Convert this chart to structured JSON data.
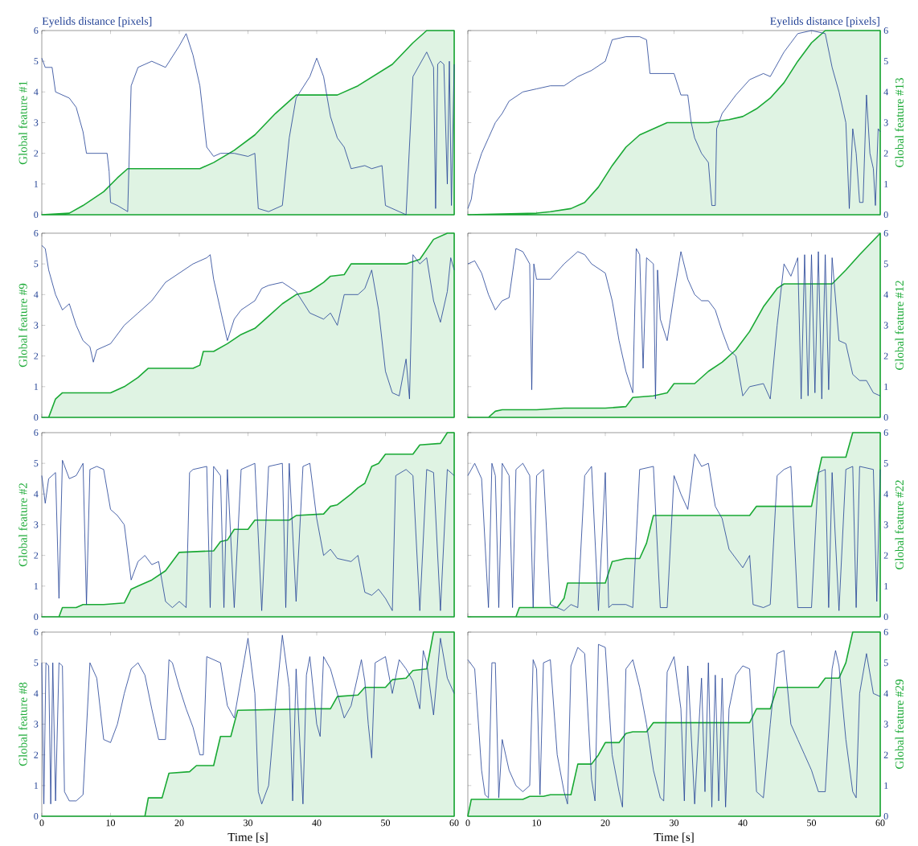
{
  "chart_data": [
    {
      "type": "line",
      "ylabel": "Global feature #1",
      "annotations": [
        "Eyelids distance [pixels]"
      ],
      "xlim": [
        0,
        60
      ],
      "xticks": [
        0,
        10,
        20,
        30,
        40,
        50,
        60
      ],
      "ylim": [
        0,
        6
      ],
      "yticks": [
        0,
        1,
        2,
        3,
        4,
        5,
        6
      ],
      "tick_labels": "y",
      "series": [
        {
          "type": "area",
          "color": "#19a934",
          "x": [
            0,
            4,
            6,
            9,
            11,
            12.5,
            23,
            25,
            28,
            31,
            34,
            37,
            43,
            46,
            51,
            54,
            56,
            60
          ],
          "values": [
            0,
            0.05,
            0.3,
            0.75,
            1.2,
            1.5,
            1.5,
            1.7,
            2.1,
            2.6,
            3.3,
            3.9,
            3.9,
            4.2,
            4.9,
            5.6,
            6,
            6
          ]
        },
        {
          "color": "#1f3f94",
          "x": [
            0,
            0.5,
            1.5,
            2,
            4,
            5,
            6,
            6.5,
            8,
            9.5,
            9.8,
            10,
            11,
            12.5,
            13,
            14,
            16,
            18,
            20,
            21,
            22,
            23,
            24,
            25,
            26,
            28,
            30,
            31,
            31.5,
            33,
            35,
            36,
            37,
            39,
            40,
            41,
            42,
            43,
            44,
            45,
            47,
            48,
            49.5,
            50,
            52,
            53,
            54,
            55,
            56,
            57,
            57.3,
            57.6,
            58,
            58.5,
            59,
            59.3,
            59.6,
            60
          ],
          "values": [
            5.1,
            4.8,
            4.8,
            4.0,
            3.8,
            3.5,
            2.7,
            2.0,
            2.0,
            2.0,
            1.4,
            0.4,
            0.3,
            0.1,
            4.2,
            4.8,
            5.0,
            4.8,
            5.5,
            5.9,
            5.2,
            4.2,
            2.2,
            1.9,
            2.0,
            2.0,
            1.9,
            2.0,
            0.2,
            0.1,
            0.3,
            2.5,
            3.8,
            4.5,
            5.1,
            4.5,
            3.2,
            2.5,
            2.2,
            1.5,
            1.6,
            1.5,
            1.6,
            0.3,
            0.1,
            0.0,
            4.5,
            4.9,
            5.3,
            4.8,
            0.2,
            4.9,
            5.0,
            4.9,
            1.0,
            5.0,
            0.3,
            4.9
          ]
        }
      ]
    },
    {
      "type": "line",
      "ylabel": "Global feature #13",
      "annotations": [
        "Eyelids distance [pixels]"
      ],
      "xlim": [
        0,
        60
      ],
      "xticks": [
        0,
        10,
        20,
        30,
        40,
        50,
        60
      ],
      "ylim": [
        0,
        6
      ],
      "yticks": [
        0,
        1,
        2,
        3,
        4,
        5,
        6
      ],
      "tick_labels": "y",
      "series": [
        {
          "type": "area",
          "color": "#19a934",
          "x": [
            0,
            10,
            12,
            15,
            17,
            19,
            21,
            23,
            25,
            27,
            29,
            35,
            38,
            40,
            42,
            44,
            46,
            48,
            50,
            52,
            60
          ],
          "values": [
            0,
            0.05,
            0.1,
            0.2,
            0.4,
            0.9,
            1.6,
            2.2,
            2.6,
            2.8,
            3.0,
            3.0,
            3.1,
            3.2,
            3.45,
            3.8,
            4.3,
            5.0,
            5.6,
            6.0,
            6.0
          ]
        },
        {
          "color": "#1f3f94",
          "x": [
            0,
            0.5,
            1,
            2,
            3,
            4,
            5,
            6,
            8,
            10,
            12,
            14,
            16,
            17,
            18,
            20,
            21,
            23,
            25,
            26,
            26.5,
            28,
            30,
            31,
            32,
            32.5,
            33,
            34,
            35,
            35.5,
            36,
            36.2,
            37,
            39,
            41,
            43,
            44,
            46,
            47,
            48,
            50,
            52,
            53,
            54,
            55,
            55.5,
            56,
            56.5,
            57,
            57.5,
            58,
            58.5,
            59,
            59.3,
            59.7,
            60
          ],
          "values": [
            0.2,
            0.5,
            1.3,
            2.0,
            2.5,
            3.0,
            3.3,
            3.7,
            4.0,
            4.1,
            4.2,
            4.2,
            4.5,
            4.6,
            4.7,
            5.0,
            5.7,
            5.8,
            5.8,
            5.7,
            4.6,
            4.6,
            4.6,
            3.9,
            3.9,
            3.0,
            2.5,
            2.0,
            1.7,
            0.3,
            0.3,
            2.8,
            3.3,
            3.9,
            4.4,
            4.6,
            4.5,
            5.3,
            5.6,
            5.9,
            6.0,
            5.9,
            4.8,
            4.0,
            3.0,
            0.2,
            2.8,
            2.0,
            0.4,
            0.4,
            3.9,
            2.0,
            1.5,
            0.3,
            2.8,
            2.7
          ]
        }
      ]
    },
    {
      "type": "line",
      "ylabel": "Global feature #9",
      "xlim": [
        0,
        60
      ],
      "xticks": [
        0,
        10,
        20,
        30,
        40,
        50,
        60
      ],
      "ylim": [
        0,
        6
      ],
      "yticks": [
        0,
        1,
        2,
        3,
        4,
        5,
        6
      ],
      "tick_labels": "y",
      "series": [
        {
          "type": "area",
          "color": "#19a934",
          "x": [
            0,
            1,
            2,
            3,
            10,
            12,
            14,
            15.5,
            22,
            23,
            23.5,
            25,
            27,
            29,
            31,
            33,
            35,
            37,
            39,
            41,
            42,
            44,
            45,
            53,
            55,
            57,
            59,
            60
          ],
          "values": [
            0,
            0,
            0.6,
            0.8,
            0.8,
            1.0,
            1.3,
            1.6,
            1.6,
            1.7,
            2.15,
            2.15,
            2.4,
            2.7,
            2.9,
            3.3,
            3.7,
            4.0,
            4.1,
            4.4,
            4.6,
            4.65,
            5.0,
            5.0,
            5.15,
            5.8,
            6.0,
            6.0
          ]
        },
        {
          "color": "#1f3f94",
          "x": [
            0,
            0.5,
            1,
            2,
            3,
            4,
            5,
            6,
            7,
            7.5,
            8,
            10,
            12,
            14,
            16,
            17,
            18,
            20,
            22,
            24,
            24.5,
            25,
            26,
            27,
            28,
            29,
            31,
            32,
            33,
            35,
            37,
            39,
            41,
            42,
            43,
            44,
            46,
            47,
            48,
            49,
            50,
            51,
            52,
            53,
            53.5,
            54,
            55,
            56,
            57,
            58,
            59,
            59.5,
            60
          ],
          "values": [
            5.6,
            5.5,
            4.8,
            4.0,
            3.5,
            3.7,
            3.0,
            2.5,
            2.3,
            1.8,
            2.2,
            2.4,
            3.0,
            3.4,
            3.8,
            4.1,
            4.4,
            4.7,
            5.0,
            5.2,
            5.3,
            4.5,
            3.5,
            2.5,
            3.2,
            3.5,
            3.8,
            4.2,
            4.3,
            4.4,
            4.1,
            3.4,
            3.2,
            3.4,
            3.0,
            4.0,
            4.0,
            4.2,
            4.8,
            3.5,
            1.5,
            0.8,
            0.7,
            1.9,
            0.6,
            5.3,
            5.0,
            5.2,
            3.8,
            3.1,
            4.1,
            5.2,
            4.8
          ]
        }
      ]
    },
    {
      "type": "line",
      "ylabel": "Global feature #12",
      "xlim": [
        0,
        60
      ],
      "xticks": [
        0,
        10,
        20,
        30,
        40,
        50,
        60
      ],
      "ylim": [
        0,
        6
      ],
      "yticks": [
        0,
        1,
        2,
        3,
        4,
        5,
        6
      ],
      "tick_labels": "y",
      "series": [
        {
          "type": "area",
          "color": "#19a934",
          "x": [
            0,
            3,
            4,
            5,
            10,
            14,
            20,
            23,
            24,
            27,
            29,
            30,
            33,
            35,
            37,
            39,
            41,
            43,
            45,
            46,
            53,
            55,
            57,
            60
          ],
          "values": [
            0,
            0,
            0.2,
            0.25,
            0.25,
            0.3,
            0.3,
            0.35,
            0.65,
            0.7,
            0.8,
            1.1,
            1.1,
            1.5,
            1.8,
            2.2,
            2.8,
            3.6,
            4.2,
            4.35,
            4.35,
            4.8,
            5.3,
            6.0
          ]
        },
        {
          "color": "#1f3f94",
          "x": [
            0,
            1,
            2,
            3,
            4,
            5,
            6,
            7,
            8,
            9,
            9.3,
            9.6,
            10,
            12,
            14,
            16,
            17,
            18,
            20,
            21,
            22,
            23,
            24,
            24.5,
            25,
            25.5,
            26,
            27,
            27.3,
            27.6,
            28,
            29,
            30,
            31,
            32,
            33,
            34,
            35,
            36,
            37,
            38,
            39,
            40,
            41,
            43,
            44,
            45,
            46,
            47,
            48,
            48.5,
            49,
            49.5,
            50,
            50.5,
            51,
            51.5,
            52,
            52.5,
            53,
            54,
            55,
            56,
            57,
            58,
            59,
            60
          ],
          "values": [
            5.0,
            5.1,
            4.7,
            4.0,
            3.5,
            3.8,
            3.9,
            5.5,
            5.4,
            5.0,
            0.9,
            5.0,
            4.5,
            4.5,
            5.0,
            5.4,
            5.3,
            5.0,
            4.7,
            3.8,
            2.5,
            1.5,
            0.8,
            5.5,
            5.3,
            1.6,
            5.2,
            5.0,
            0.6,
            4.8,
            3.2,
            2.5,
            4.0,
            5.4,
            4.5,
            4.0,
            3.8,
            3.8,
            3.5,
            2.8,
            2.2,
            2.0,
            0.7,
            1.0,
            1.1,
            0.6,
            3.0,
            5.0,
            4.6,
            5.2,
            0.6,
            5.3,
            0.7,
            5.3,
            0.8,
            5.4,
            0.6,
            5.3,
            0.9,
            5.2,
            2.5,
            2.4,
            1.4,
            1.2,
            1.2,
            0.8,
            0.7
          ]
        }
      ]
    },
    {
      "type": "line",
      "ylabel": "Global feature #2",
      "xlim": [
        0,
        60
      ],
      "xticks": [
        0,
        10,
        20,
        30,
        40,
        50,
        60
      ],
      "ylim": [
        0,
        6
      ],
      "yticks": [
        0,
        1,
        2,
        3,
        4,
        5,
        6
      ],
      "tick_labels": "y",
      "series": [
        {
          "type": "area",
          "color": "#19a934",
          "x": [
            0,
            2.5,
            3,
            5,
            6,
            9,
            12,
            13,
            14,
            16,
            18,
            19,
            20,
            25,
            26,
            27,
            28,
            30,
            31,
            36,
            37,
            41,
            42,
            43,
            45,
            46,
            47,
            48,
            49,
            50,
            54,
            55,
            58,
            59,
            60
          ],
          "values": [
            0,
            0,
            0.3,
            0.3,
            0.4,
            0.4,
            0.45,
            0.9,
            1.0,
            1.2,
            1.5,
            1.8,
            2.1,
            2.15,
            2.45,
            2.5,
            2.85,
            2.85,
            3.15,
            3.15,
            3.3,
            3.35,
            3.6,
            3.65,
            4.0,
            4.2,
            4.35,
            4.9,
            5.0,
            5.3,
            5.3,
            5.6,
            5.65,
            6.0,
            6.0
          ]
        },
        {
          "color": "#1f3f94",
          "x": [
            0,
            0.5,
            1,
            2,
            2.5,
            3,
            4,
            5,
            6,
            6.5,
            7,
            8,
            9,
            10,
            11,
            12,
            13,
            14,
            15,
            16,
            17,
            18,
            19,
            20,
            21,
            21.5,
            22,
            24,
            24.5,
            25,
            26,
            26.5,
            27,
            28,
            29,
            31,
            32,
            33,
            35,
            35.5,
            36,
            37,
            38,
            39,
            40,
            41,
            42,
            43,
            45,
            46,
            47,
            48,
            49,
            50,
            51,
            51.5,
            53,
            54,
            55,
            56,
            57,
            58,
            59,
            60
          ],
          "values": [
            4.6,
            3.7,
            4.5,
            4.7,
            0.6,
            5.1,
            4.5,
            4.6,
            5.0,
            0.4,
            4.8,
            4.9,
            4.8,
            3.5,
            3.3,
            3.0,
            1.2,
            1.8,
            2.0,
            1.7,
            1.8,
            0.5,
            0.3,
            0.5,
            0.3,
            4.7,
            4.8,
            4.9,
            0.3,
            4.9,
            4.6,
            0.3,
            4.8,
            0.3,
            4.8,
            5.0,
            0.2,
            4.9,
            5.0,
            0.3,
            5.0,
            0.5,
            4.9,
            5.0,
            3.2,
            2.0,
            2.2,
            1.9,
            1.8,
            2.0,
            0.8,
            0.7,
            0.9,
            0.6,
            0.2,
            4.6,
            4.8,
            4.6,
            0.2,
            4.8,
            4.7,
            0.2,
            4.8,
            4.6
          ]
        }
      ]
    },
    {
      "type": "line",
      "ylabel": "Global feature #22",
      "xlim": [
        0,
        60
      ],
      "xticks": [
        0,
        10,
        20,
        30,
        40,
        50,
        60
      ],
      "ylim": [
        0,
        6
      ],
      "yticks": [
        0,
        1,
        2,
        3,
        4,
        5,
        6
      ],
      "tick_labels": "y",
      "series": [
        {
          "type": "area",
          "color": "#19a934",
          "x": [
            0,
            7,
            7.5,
            13,
            14,
            14.5,
            20,
            21,
            23,
            25,
            26,
            27,
            41,
            42,
            50,
            51,
            51.5,
            55,
            56,
            60
          ],
          "values": [
            0,
            0,
            0.3,
            0.3,
            0.6,
            1.1,
            1.1,
            1.8,
            1.9,
            1.9,
            2.4,
            3.3,
            3.3,
            3.6,
            3.6,
            4.7,
            5.2,
            5.2,
            6.0,
            6.0
          ]
        },
        {
          "color": "#1f3f94",
          "x": [
            0,
            0.5,
            1,
            2,
            3,
            3.5,
            4,
            4.5,
            5,
            6,
            6.5,
            7,
            8,
            9,
            9.5,
            10,
            11,
            12,
            14,
            15,
            16,
            17,
            18,
            19,
            20,
            20.5,
            21,
            23,
            24,
            25,
            27,
            28,
            29,
            30,
            31,
            32,
            33,
            34,
            35,
            36,
            37,
            38,
            40,
            41,
            41.5,
            43,
            44,
            45,
            46,
            47,
            48,
            50,
            51,
            52,
            52.5,
            53,
            54,
            55,
            56,
            56.5,
            57,
            59,
            59.5,
            60
          ],
          "values": [
            4.6,
            4.8,
            5.0,
            4.5,
            0.3,
            5.0,
            4.6,
            0.3,
            5.0,
            4.6,
            0.3,
            4.8,
            5.0,
            4.6,
            0.3,
            4.6,
            4.8,
            0.4,
            0.2,
            0.4,
            0.3,
            4.6,
            4.9,
            0.2,
            4.7,
            0.3,
            0.4,
            0.4,
            0.3,
            4.8,
            4.9,
            0.3,
            0.3,
            4.6,
            4.0,
            3.5,
            5.3,
            4.9,
            5.0,
            3.6,
            3.2,
            2.2,
            1.6,
            2.0,
            0.4,
            0.3,
            0.4,
            4.6,
            4.8,
            4.9,
            0.3,
            0.3,
            4.7,
            4.8,
            0.3,
            4.7,
            0.2,
            4.8,
            4.9,
            0.3,
            4.9,
            4.8,
            0.5,
            4.8
          ]
        }
      ]
    },
    {
      "type": "line",
      "ylabel": "Global feature #8",
      "xlabel": "Time [s]",
      "xlim": [
        0,
        60
      ],
      "xticks": [
        0,
        10,
        20,
        30,
        40,
        50,
        60
      ],
      "ylim": [
        0,
        6
      ],
      "yticks": [
        0,
        1,
        2,
        3,
        4,
        5,
        6
      ],
      "series": [
        {
          "type": "area",
          "color": "#19a934",
          "x": [
            0,
            15,
            15.5,
            17.5,
            18.5,
            21.5,
            22.5,
            25,
            26,
            27.5,
            28.5,
            39.5,
            42,
            43,
            46,
            47,
            50,
            51,
            53,
            54,
            56,
            57,
            60
          ],
          "values": [
            0,
            0,
            0.6,
            0.6,
            1.4,
            1.45,
            1.65,
            1.65,
            2.6,
            2.6,
            3.45,
            3.5,
            3.5,
            3.9,
            3.95,
            4.2,
            4.2,
            4.45,
            4.5,
            4.75,
            4.8,
            6.0,
            6.0
          ]
        },
        {
          "color": "#1f3f94",
          "x": [
            0,
            0.3,
            0.6,
            1,
            1.3,
            1.6,
            2,
            2.5,
            3,
            3.3,
            4,
            5,
            6,
            7,
            8,
            9,
            10,
            11,
            12,
            13,
            14,
            15,
            16,
            17,
            18,
            18.5,
            19,
            20,
            21,
            22,
            23,
            23.5,
            24,
            26,
            27,
            28,
            29,
            30,
            31,
            31.5,
            32,
            33,
            34,
            35,
            36,
            36.5,
            37,
            38,
            38.5,
            39,
            40,
            40.5,
            41,
            42,
            43,
            44,
            45,
            46,
            46.5,
            47,
            47.5,
            48,
            48.5,
            50,
            51,
            52,
            53,
            54,
            55,
            55.5,
            56,
            57,
            58,
            59,
            60
          ],
          "values": [
            5.0,
            0.4,
            5.0,
            4.9,
            0.4,
            5.0,
            0.5,
            5.0,
            4.9,
            0.8,
            0.5,
            0.5,
            0.7,
            5.0,
            4.5,
            2.5,
            2.4,
            3.0,
            4.0,
            4.8,
            5.0,
            4.6,
            3.5,
            2.5,
            2.5,
            5.1,
            5.0,
            4.2,
            3.5,
            2.9,
            2.0,
            2.0,
            5.2,
            5.0,
            3.6,
            3.2,
            4.5,
            5.8,
            4.0,
            0.8,
            0.4,
            1.0,
            3.6,
            5.9,
            4.2,
            0.5,
            4.8,
            0.4,
            4.6,
            5.2,
            3.0,
            2.6,
            5.2,
            4.8,
            4.0,
            3.2,
            3.6,
            4.6,
            5.1,
            4.4,
            3.0,
            1.9,
            5.0,
            5.2,
            4.0,
            5.1,
            4.8,
            4.4,
            3.5,
            5.4,
            5.0,
            3.3,
            5.8,
            4.5,
            4.0
          ]
        }
      ]
    },
    {
      "type": "line",
      "ylabel": "Global feature #29",
      "xlabel": "Time [s]",
      "xlim": [
        0,
        60
      ],
      "xticks": [
        0,
        10,
        20,
        30,
        40,
        50,
        60
      ],
      "ylim": [
        0,
        6
      ],
      "yticks": [
        0,
        1,
        2,
        3,
        4,
        5,
        6
      ],
      "series": [
        {
          "type": "area",
          "color": "#19a934",
          "x": [
            0,
            0.5,
            8,
            9,
            11,
            12,
            15,
            16,
            18,
            19,
            20,
            22,
            23,
            24,
            26,
            27,
            41,
            42,
            44,
            45,
            51,
            52,
            54,
            55,
            56,
            60
          ],
          "values": [
            0,
            0.55,
            0.55,
            0.65,
            0.65,
            0.7,
            0.7,
            1.7,
            1.7,
            2.0,
            2.4,
            2.4,
            2.7,
            2.75,
            2.75,
            3.05,
            3.05,
            3.5,
            3.5,
            4.2,
            4.2,
            4.5,
            4.5,
            5.0,
            6.0,
            6.0
          ]
        },
        {
          "color": "#1f3f94",
          "x": [
            0,
            1,
            2,
            2.5,
            3,
            3.5,
            4,
            4.5,
            5,
            6,
            7,
            8,
            9,
            9.5,
            10,
            10.5,
            11,
            12,
            13,
            14,
            14.5,
            15,
            16,
            17,
            18,
            18.5,
            19,
            20,
            21,
            22,
            22.5,
            23,
            24,
            25,
            26,
            27,
            28,
            28.5,
            29,
            30,
            31,
            31.5,
            32,
            33,
            34,
            34.5,
            35,
            35.5,
            36,
            36.5,
            37,
            37.5,
            38,
            39,
            40,
            41,
            42,
            43,
            44,
            45,
            46,
            47,
            48,
            49,
            50,
            51,
            52,
            53,
            53.5,
            54,
            55,
            56,
            56.5,
            57,
            58,
            59,
            60
          ],
          "values": [
            5.1,
            4.8,
            1.5,
            0.7,
            0.6,
            5.0,
            5.0,
            0.6,
            2.5,
            1.5,
            1.0,
            0.8,
            1.0,
            5.1,
            4.8,
            0.7,
            5.0,
            5.1,
            2.0,
            0.8,
            0.4,
            4.9,
            5.5,
            5.3,
            1.2,
            0.5,
            5.6,
            5.5,
            2.0,
            0.8,
            0.3,
            4.8,
            5.1,
            4.2,
            3.0,
            1.5,
            0.6,
            0.5,
            4.7,
            5.2,
            3.5,
            0.5,
            4.9,
            0.4,
            4.5,
            0.8,
            5.0,
            0.3,
            4.6,
            0.5,
            4.5,
            0.3,
            3.5,
            4.6,
            4.9,
            4.8,
            0.8,
            0.6,
            3.0,
            5.3,
            5.4,
            3.0,
            2.5,
            2.0,
            1.5,
            0.8,
            0.8,
            4.8,
            5.4,
            4.9,
            2.5,
            0.8,
            0.6,
            4.0,
            5.3,
            4.0,
            3.9
          ]
        }
      ]
    }
  ]
}
